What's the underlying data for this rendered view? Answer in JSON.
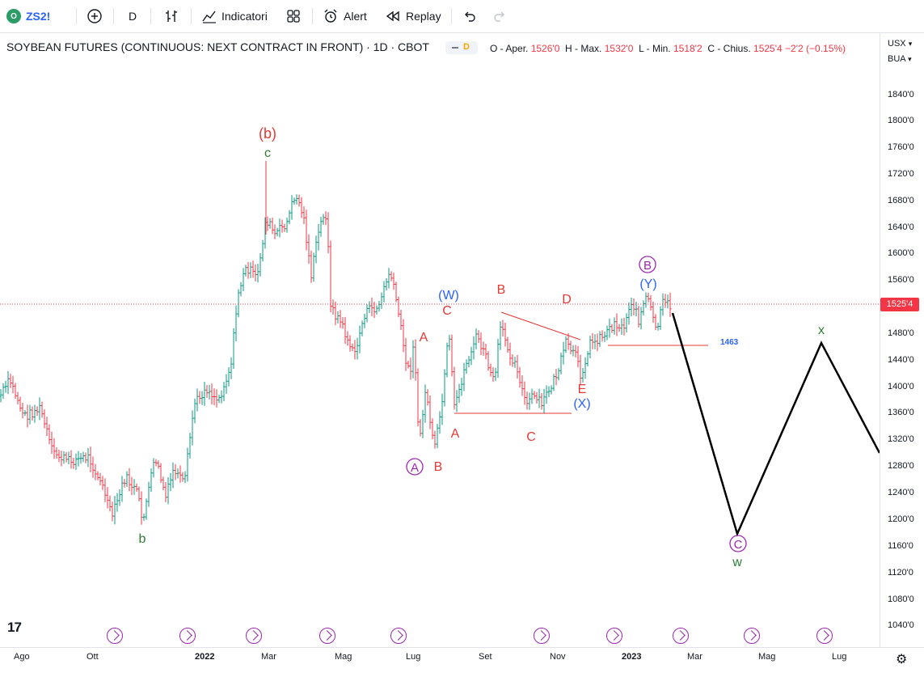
{
  "toolbar": {
    "symbol": "ZS2!",
    "symbol_badge": "O",
    "interval": "D",
    "indicators_label": "Indicatori",
    "alert_label": "Alert",
    "replay_label": "Replay"
  },
  "legend": {
    "title": "SOYBEAN FUTURES (CONTINUOUS: NEXT CONTRACT IN FRONT) · 1D · CBOT",
    "pill_letter": "D",
    "open_label": "O - Aper.",
    "open_value": "1526'0",
    "high_label": "H - Max.",
    "high_value": "1532'0",
    "low_label": "L - Min.",
    "low_value": "1518'2",
    "close_label": "C - Chius.",
    "close_value": "1525'4",
    "change": "−2'2 (−0.15%)"
  },
  "right_controls": {
    "currency": "USX",
    "unit": "BUA"
  },
  "y_axis": {
    "labels": [
      "1840'0",
      "1800'0",
      "1760'0",
      "1720'0",
      "1680'0",
      "1640'0",
      "1600'0",
      "1560'0",
      "1480'0",
      "1440'0",
      "1400'0",
      "1360'0",
      "1320'0",
      "1280'0",
      "1240'0",
      "1200'0",
      "1160'0",
      "1120'0",
      "1080'0",
      "1040'0"
    ],
    "current_price": "1525'4"
  },
  "x_axis": {
    "labels": [
      "Ago",
      "Ott",
      "2022",
      "Mar",
      "Mag",
      "Lug",
      "Set",
      "Nov",
      "2023",
      "Mar",
      "Mag",
      "Lug"
    ]
  },
  "chart_data": {
    "type": "bar",
    "annotations": [
      "(b)",
      "c",
      "b",
      "(W)",
      "C",
      "A",
      "A",
      "B",
      "B",
      "C",
      "D",
      "E",
      "(X)",
      "A",
      "B",
      "(Y)",
      "x",
      "C",
      "w"
    ],
    "level_label": "1463",
    "colors": {
      "up": "#089981",
      "down": "#f23645",
      "wave_red": "#e53935",
      "wave_green": "#2e7d32",
      "wave_blue": "#2962ff",
      "wave_purple": "#9c27b0",
      "projection": "#000000"
    }
  }
}
